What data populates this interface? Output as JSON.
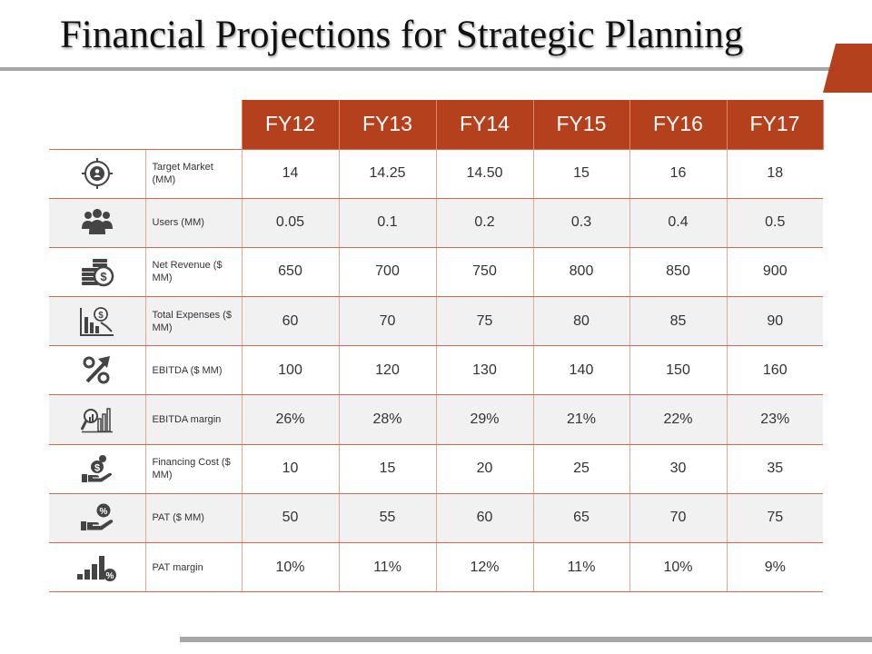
{
  "title": "Financial Projections for Strategic Planning",
  "colors": {
    "accent": "#b5401d",
    "rule": "#a6a6a6",
    "icon": "#444444"
  },
  "table": {
    "years": [
      "FY12",
      "FY13",
      "FY14",
      "FY15",
      "FY16",
      "FY17"
    ],
    "rows": [
      {
        "icon": "target-market-icon",
        "label": "Target Market (MM)",
        "values": [
          "14",
          "14.25",
          "14.50",
          "15",
          "16",
          "18"
        ]
      },
      {
        "icon": "users-icon",
        "label": "Users (MM)",
        "values": [
          "0.05",
          "0.1",
          "0.2",
          "0.3",
          "0.4",
          "0.5"
        ]
      },
      {
        "icon": "coins-dollar-icon",
        "label": "Net Revenue ($ MM)",
        "values": [
          "650",
          "700",
          "750",
          "800",
          "850",
          "900"
        ]
      },
      {
        "icon": "expense-chart-icon",
        "label": "Total Expenses ($ MM)",
        "values": [
          "60",
          "70",
          "75",
          "80",
          "85",
          "90"
        ]
      },
      {
        "icon": "percent-arrow-icon",
        "label": "EBITDA ($ MM)",
        "values": [
          "100",
          "120",
          "130",
          "140",
          "150",
          "160"
        ]
      },
      {
        "icon": "magnifier-bars-icon",
        "label": "EBITDA margin",
        "values": [
          "26%",
          "28%",
          "29%",
          "21%",
          "22%",
          "23%"
        ]
      },
      {
        "icon": "hand-money-icon",
        "label": "Financing Cost ($ MM)",
        "values": [
          "10",
          "15",
          "20",
          "25",
          "30",
          "35"
        ]
      },
      {
        "icon": "hand-percent-icon",
        "label": "PAT ($ MM)",
        "values": [
          "50",
          "55",
          "60",
          "65",
          "70",
          "75"
        ]
      },
      {
        "icon": "bars-percent-icon",
        "label": "PAT margin",
        "values": [
          "10%",
          "11%",
          "12%",
          "11%",
          "10%",
          "9%"
        ]
      }
    ]
  }
}
